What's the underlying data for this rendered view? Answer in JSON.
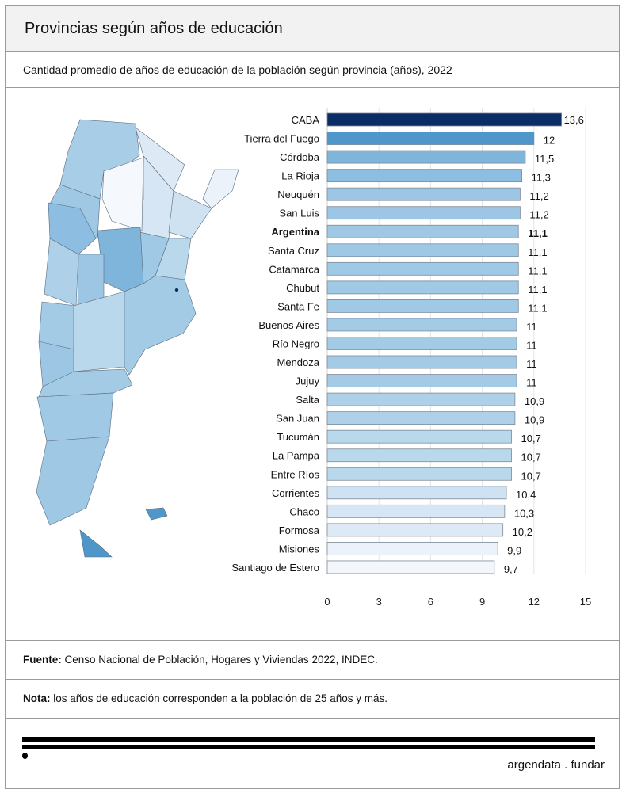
{
  "header": {
    "title": "Provincias según años de educación"
  },
  "subtitle": "Cantidad promedio de años de educación de la población según provincia (años), 2022",
  "footer": {
    "fuente_label": "Fuente:",
    "fuente_text": " Censo Nacional de Población, Hogares y Viviendas 2022, INDEC.",
    "nota_label": "Nota:",
    "nota_text": " los años de educación corresponden a la población de 25 años y más.",
    "brand": "argendata . fundar"
  },
  "chart_data": {
    "type": "bar",
    "orientation": "horizontal",
    "title": "Provincias según años de educación",
    "categories": [
      "CABA",
      "Tierra del Fuego",
      "Córdoba",
      "La Rioja",
      "Neuquén",
      "San Luis",
      "Argentina",
      "Santa Cruz",
      "Catamarca",
      "Chubut",
      "Santa Fe",
      "Buenos Aires",
      "Río Negro",
      "Mendoza",
      "Jujuy",
      "Salta",
      "San Juan",
      "Tucumán",
      "La Pampa",
      "Entre Ríos",
      "Corrientes",
      "Chaco",
      "Formosa",
      "Misiones",
      "Santiago de Estero"
    ],
    "values": [
      13.6,
      12,
      11.5,
      11.3,
      11.2,
      11.2,
      11.1,
      11.1,
      11.1,
      11.1,
      11.1,
      11,
      11,
      11,
      11,
      10.9,
      10.9,
      10.7,
      10.7,
      10.7,
      10.4,
      10.3,
      10.2,
      9.9,
      9.7
    ],
    "labels": [
      "13,6",
      "12",
      "11,5",
      "11,3",
      "11,2",
      "11,2",
      "11,1",
      "11,1",
      "11,1",
      "11,1",
      "11,1",
      "11",
      "11",
      "11",
      "11",
      "10,9",
      "10,9",
      "10,7",
      "10,7",
      "10,7",
      "10,4",
      "10,3",
      "10,2",
      "9,9",
      "9,7"
    ],
    "highlight": "Argentina",
    "xlim": [
      0,
      15
    ],
    "xticks": [
      0,
      3,
      6,
      9,
      12,
      15
    ],
    "grid": true,
    "colors": [
      "#0b2d67",
      "#4f97cb",
      "#7fb5db",
      "#8dbde0",
      "#9cc6e4",
      "#9cc6e4",
      "#9fc8e5",
      "#9fc8e5",
      "#a0c9e5",
      "#a0c9e5",
      "#a0c9e5",
      "#a4cbe6",
      "#a4cbe6",
      "#a4cbe6",
      "#a4cbe6",
      "#aed1e9",
      "#aed1e9",
      "#bad8ec",
      "#bad8ec",
      "#bad8ec",
      "#cfe2f2",
      "#d6e6f4",
      "#dde9f5",
      "#ebf2f9",
      "#f3f7fc"
    ]
  },
  "map": {
    "provinces": [
      {
        "name": "Jujuy-Salta",
        "color": "#a8cde7"
      },
      {
        "name": "Formosa",
        "color": "#dde9f5"
      },
      {
        "name": "Chaco",
        "color": "#d6e6f4"
      },
      {
        "name": "Santiago del Estero",
        "color": "#f5f8fc"
      },
      {
        "name": "Tucumán-Catamarca",
        "color": "#9fc8e5"
      },
      {
        "name": "Misiones",
        "color": "#ebf2f9"
      },
      {
        "name": "Corrientes",
        "color": "#cfe2f2"
      },
      {
        "name": "Entre Ríos",
        "color": "#bad8ec"
      },
      {
        "name": "Santa Fe",
        "color": "#a0c9e5"
      },
      {
        "name": "Córdoba",
        "color": "#7fb5db"
      },
      {
        "name": "La Rioja",
        "color": "#8dbde0"
      },
      {
        "name": "San Juan",
        "color": "#aed1e9"
      },
      {
        "name": "San Luis",
        "color": "#9cc6e4"
      },
      {
        "name": "Mendoza",
        "color": "#a4cbe6"
      },
      {
        "name": "La Pampa",
        "color": "#bad8ec"
      },
      {
        "name": "Buenos Aires",
        "color": "#a4cbe6"
      },
      {
        "name": "Neuquén",
        "color": "#9cc6e4"
      },
      {
        "name": "Río Negro",
        "color": "#a4cbe6"
      },
      {
        "name": "Chubut",
        "color": "#a0c9e5"
      },
      {
        "name": "Santa Cruz",
        "color": "#9fc8e5"
      },
      {
        "name": "Tierra del Fuego",
        "color": "#4f97cb"
      },
      {
        "name": "Malvinas",
        "color": "#4f97cb"
      },
      {
        "name": "CABA",
        "color": "#0b2d67"
      }
    ]
  }
}
